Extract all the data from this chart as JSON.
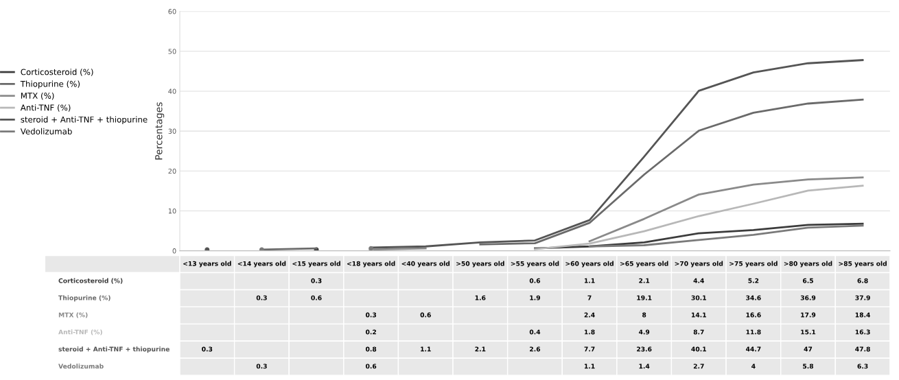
{
  "chart_data": {
    "type": "line",
    "ylabel": "Percentages",
    "categories": [
      "<13 years old",
      "<14 years old",
      "<15 years old",
      "<18 years old",
      "<40 years old",
      ">50 years old",
      ">55 years old",
      ">60 years old",
      ">65 years old",
      ">70 years old",
      ">75 years old",
      ">80 years old",
      ">85 years old"
    ],
    "series": [
      {
        "name": "Corticosteroid (%)",
        "color": "#3c3c3c",
        "values": [
          null,
          null,
          0.3,
          null,
          null,
          null,
          0.6,
          1.1,
          2.1,
          4.4,
          5.2,
          6.5,
          6.8
        ]
      },
      {
        "name": "Thiopurine (%)",
        "color": "#6a6a6a",
        "values": [
          null,
          0.3,
          0.6,
          null,
          null,
          1.6,
          1.9,
          7,
          19.1,
          30.1,
          34.6,
          36.9,
          37.9
        ]
      },
      {
        "name": "MTX (%)",
        "color": "#8a8a8a",
        "values": [
          null,
          null,
          null,
          0.3,
          0.6,
          null,
          null,
          2.4,
          8,
          14.1,
          16.6,
          17.9,
          18.4
        ]
      },
      {
        "name": "Anti-TNF (%)",
        "color": "#b8b8b8",
        "values": [
          null,
          null,
          null,
          0.2,
          null,
          null,
          0.4,
          1.8,
          4.9,
          8.7,
          11.8,
          15.1,
          16.3
        ]
      },
      {
        "name": "steroid + Anti-TNF + thiopurine",
        "color": "#555555",
        "values": [
          0.3,
          null,
          null,
          0.8,
          1.1,
          2.1,
          2.6,
          7.7,
          23.6,
          40.1,
          44.7,
          47,
          47.8
        ]
      },
      {
        "name": "Vedolizumab",
        "color": "#7a7a7a",
        "values": [
          null,
          0.3,
          null,
          0.6,
          null,
          null,
          null,
          1.1,
          1.4,
          2.7,
          4,
          5.8,
          6.3
        ]
      }
    ],
    "ylim": [
      0,
      60
    ],
    "yticks": [
      0,
      10,
      20,
      30,
      40,
      50,
      60
    ],
    "grid": "y",
    "legend": "left",
    "data_labels": true,
    "line_style": "solid",
    "marker": "none"
  }
}
